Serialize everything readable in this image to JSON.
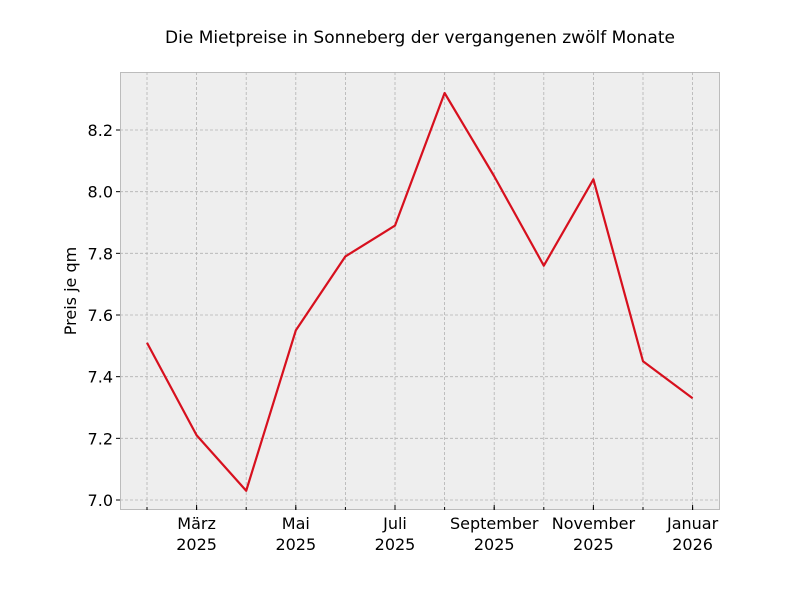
{
  "chart_data": {
    "type": "line",
    "title": "Die Mietpreise in Sonneberg der vergangenen zwölf Monate",
    "xlabel": "",
    "ylabel": "Preis je qm",
    "x": [
      "2025-02",
      "2025-03",
      "2025-04",
      "2025-05",
      "2025-06",
      "2025-07",
      "2025-08",
      "2025-09",
      "2025-10",
      "2025-11",
      "2025-12",
      "2026-01"
    ],
    "series": [
      {
        "name": "Mietpreis",
        "color": "#d7101e",
        "values": [
          7.51,
          7.21,
          7.03,
          7.55,
          7.79,
          7.89,
          8.32,
          8.05,
          7.76,
          8.04,
          7.45,
          7.33
        ]
      }
    ],
    "x_tick_labels": [
      {
        "line1": "März",
        "line2": "2025",
        "index": 1
      },
      {
        "line1": "Mai",
        "line2": "2025",
        "index": 3
      },
      {
        "line1": "Juli",
        "line2": "2025",
        "index": 5
      },
      {
        "line1": "September",
        "line2": "2025",
        "index": 7
      },
      {
        "line1": "November",
        "line2": "2025",
        "index": 9
      },
      {
        "line1": "Januar",
        "line2": "2026",
        "index": 11
      }
    ],
    "y_ticks": [
      7.0,
      7.2,
      7.4,
      7.6,
      7.8,
      8.0,
      8.2
    ],
    "y_tick_labels": [
      "7.0",
      "7.2",
      "7.4",
      "7.6",
      "7.8",
      "8.0",
      "8.2"
    ],
    "ylim": [
      6.97,
      8.39
    ],
    "grid": true,
    "legend": null,
    "background": "#eeeeee"
  }
}
